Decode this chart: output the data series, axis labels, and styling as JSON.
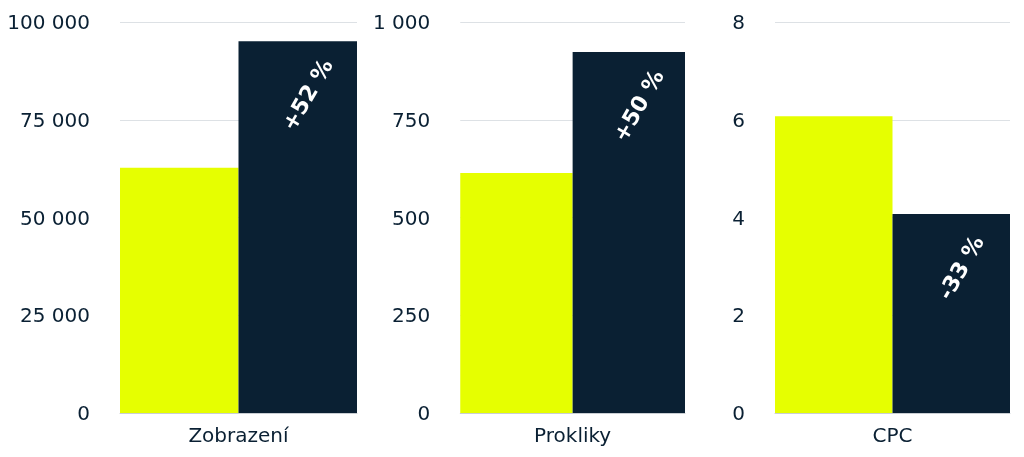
{
  "chart_data": [
    {
      "type": "bar",
      "categories": [
        "Zobrazení"
      ],
      "series": [
        {
          "color": "#e6ff00",
          "values": [
            62700
          ]
        },
        {
          "color": "#0a2033",
          "values": [
            95100
          ]
        }
      ],
      "ylim": [
        0,
        100000
      ],
      "yticks": [
        0,
        {
          "value": 25000,
          "label": "25 000"
        },
        {
          "value": 50000,
          "label": "50 000"
        },
        {
          "value": 75000,
          "label": "75 000"
        },
        {
          "value": 100000,
          "label": "100 000"
        }
      ],
      "grid": "y",
      "annotations": [
        "+52 %"
      ]
    },
    {
      "type": "bar",
      "categories": [
        "Prokliky"
      ],
      "series": [
        {
          "color": "#e6ff00",
          "values": [
            614
          ]
        },
        {
          "color": "#0a2033",
          "values": [
            923
          ]
        }
      ],
      "ylim": [
        0,
        1000
      ],
      "yticks": [
        0,
        250,
        500,
        750,
        {
          "value": 1000,
          "label": "1 000"
        }
      ],
      "grid": "y",
      "annotations": [
        "+50 %"
      ]
    },
    {
      "type": "bar",
      "categories": [
        "CPC"
      ],
      "series": [
        {
          "color": "#e6ff00",
          "values": [
            6.07
          ]
        },
        {
          "color": "#0a2033",
          "values": [
            4.07
          ]
        }
      ],
      "ylim": [
        0,
        8
      ],
      "yticks": [
        0,
        2,
        4,
        6,
        8
      ],
      "grid": "y",
      "annotations": [
        "-33 %"
      ]
    }
  ]
}
